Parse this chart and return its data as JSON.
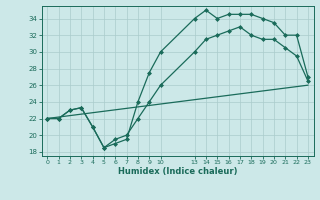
{
  "xlabel": "Humidex (Indice chaleur)",
  "bg_color": "#cce8e8",
  "grid_color": "#aacccc",
  "line_color": "#1a6b5a",
  "line1_x": [
    0,
    1,
    2,
    3,
    4,
    5,
    6,
    7,
    8,
    9,
    10,
    13,
    14,
    15,
    16,
    17,
    18,
    19,
    20,
    21,
    22,
    23
  ],
  "line1_y": [
    22,
    22,
    23,
    23.3,
    21,
    18.5,
    19,
    19.5,
    24,
    27.5,
    30,
    34,
    35,
    34,
    34.5,
    34.5,
    34.5,
    34,
    33.5,
    32,
    32,
    27
  ],
  "line2_x": [
    0,
    23
  ],
  "line2_y": [
    22,
    26
  ],
  "line3_x": [
    0,
    1,
    2,
    3,
    4,
    5,
    6,
    7,
    8,
    9,
    10,
    13,
    14,
    15,
    16,
    17,
    18,
    19,
    20,
    21,
    22,
    23
  ],
  "line3_y": [
    22,
    22,
    23,
    23.3,
    21,
    18.5,
    19.5,
    20,
    22,
    24,
    26,
    30,
    31.5,
    32,
    32.5,
    33,
    32,
    31.5,
    31.5,
    30.5,
    29.5,
    26.5
  ],
  "xlim": [
    -0.5,
    23.5
  ],
  "ylim": [
    17.5,
    35.5
  ],
  "yticks": [
    18,
    20,
    22,
    24,
    26,
    28,
    30,
    32,
    34
  ],
  "xtick_pos": [
    0,
    1,
    2,
    3,
    4,
    5,
    6,
    7,
    8,
    9,
    10,
    13,
    14,
    15,
    16,
    17,
    18,
    19,
    20,
    21,
    22,
    23
  ],
  "xtick_labels": [
    "0",
    "1",
    "2",
    "3",
    "4",
    "5",
    "6",
    "7",
    "8",
    "9",
    "10",
    "13",
    "14",
    "15",
    "16",
    "17",
    "18",
    "19",
    "20",
    "21",
    "22",
    "23"
  ]
}
